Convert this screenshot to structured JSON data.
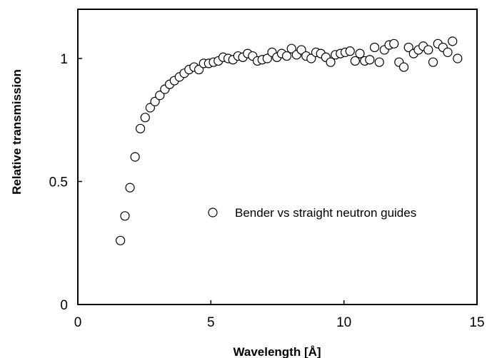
{
  "chart_data": {
    "type": "scatter",
    "title": "",
    "xlabel": "Wavelength [Å]",
    "ylabel": "Relative transmission",
    "xlim": [
      0,
      15
    ],
    "ylim": [
      0,
      1.2
    ],
    "xticks": [
      0,
      5,
      10,
      15
    ],
    "xtick_labels": [
      "0",
      "5",
      "10",
      "15"
    ],
    "yticks": [
      0,
      0.5,
      1
    ],
    "ytick_labels": [
      "0",
      "0.5",
      "1"
    ],
    "grid": false,
    "legend_position": "center-right",
    "marker": "open-circle",
    "series": [
      {
        "name": "Bender vs straight neutron guides",
        "points": [
          [
            1.6,
            0.26
          ],
          [
            1.77,
            0.36
          ],
          [
            1.96,
            0.475
          ],
          [
            2.15,
            0.6
          ],
          [
            2.35,
            0.715
          ],
          [
            2.53,
            0.76
          ],
          [
            2.72,
            0.8
          ],
          [
            2.9,
            0.825
          ],
          [
            3.08,
            0.85
          ],
          [
            3.27,
            0.875
          ],
          [
            3.45,
            0.895
          ],
          [
            3.63,
            0.91
          ],
          [
            3.82,
            0.925
          ],
          [
            4.0,
            0.94
          ],
          [
            4.18,
            0.955
          ],
          [
            4.37,
            0.965
          ],
          [
            4.55,
            0.955
          ],
          [
            4.73,
            0.98
          ],
          [
            4.92,
            0.98
          ],
          [
            5.1,
            0.985
          ],
          [
            5.28,
            0.99
          ],
          [
            5.46,
            1.005
          ],
          [
            5.65,
            1.0
          ],
          [
            5.83,
            0.995
          ],
          [
            6.02,
            1.01
          ],
          [
            6.2,
            1.005
          ],
          [
            6.38,
            1.02
          ],
          [
            6.57,
            1.01
          ],
          [
            6.75,
            0.99
          ],
          [
            6.93,
            0.995
          ],
          [
            7.12,
            1.0
          ],
          [
            7.3,
            1.025
          ],
          [
            7.48,
            1.005
          ],
          [
            7.66,
            1.02
          ],
          [
            7.85,
            1.01
          ],
          [
            8.03,
            1.04
          ],
          [
            8.22,
            1.015
          ],
          [
            8.4,
            1.035
          ],
          [
            8.58,
            1.01
          ],
          [
            8.77,
            1.0
          ],
          [
            8.95,
            1.025
          ],
          [
            9.13,
            1.02
          ],
          [
            9.32,
            1.005
          ],
          [
            9.5,
            0.985
          ],
          [
            9.68,
            1.015
          ],
          [
            9.87,
            1.02
          ],
          [
            10.05,
            1.025
          ],
          [
            10.23,
            1.03
          ],
          [
            10.42,
            0.99
          ],
          [
            10.6,
            1.02
          ],
          [
            10.78,
            0.99
          ],
          [
            10.97,
            0.995
          ],
          [
            11.15,
            1.045
          ],
          [
            11.33,
            0.985
          ],
          [
            11.52,
            1.035
          ],
          [
            11.7,
            1.055
          ],
          [
            11.88,
            1.06
          ],
          [
            12.07,
            0.985
          ],
          [
            12.25,
            0.965
          ],
          [
            12.43,
            1.045
          ],
          [
            12.62,
            1.02
          ],
          [
            12.8,
            1.035
          ],
          [
            12.98,
            1.05
          ],
          [
            13.17,
            1.035
          ],
          [
            13.35,
            0.985
          ],
          [
            13.53,
            1.06
          ],
          [
            13.72,
            1.045
          ],
          [
            13.9,
            1.025
          ],
          [
            14.08,
            1.07
          ],
          [
            14.27,
            1.0
          ]
        ]
      }
    ]
  }
}
